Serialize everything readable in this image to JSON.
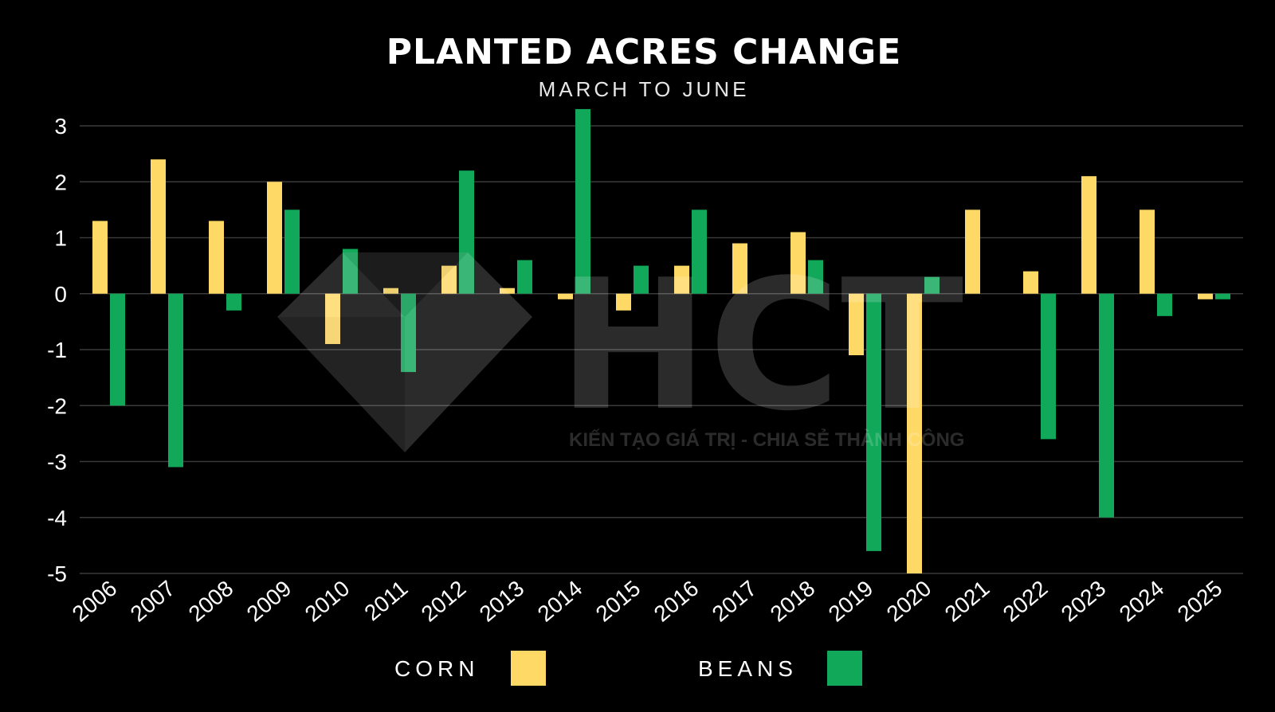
{
  "colors": {
    "background": "#000000",
    "corn": "#FFD966",
    "beans": "#12A85A",
    "grid": "#3a3a3a",
    "text": "#ffffff"
  },
  "watermark": {
    "logo_icon": "diamond-logo",
    "letters": "HCT",
    "tagline": "KIẾN TẠO GIÁ TRỊ - CHIA SẺ THÀNH CÔNG"
  },
  "chart_data": {
    "type": "bar",
    "title": "PLANTED ACRES CHANGE",
    "subtitle": "MARCH TO JUNE",
    "xlabel": "",
    "ylabel": "",
    "ylim": [
      -5,
      3
    ],
    "yticks": [
      3,
      2,
      1,
      0,
      -1,
      -2,
      -3,
      -4,
      -5
    ],
    "grid": true,
    "legend_position": "bottom-center",
    "categories": [
      "2006",
      "2007",
      "2008",
      "2009",
      "2010",
      "2011",
      "2012",
      "2013",
      "2014",
      "2015",
      "2016",
      "2017",
      "2018",
      "2019",
      "2020",
      "2021",
      "2022",
      "2023",
      "2024",
      "2025"
    ],
    "series": [
      {
        "name": "CORN",
        "color": "#FFD966",
        "values": [
          1.3,
          2.4,
          1.3,
          2.0,
          -0.9,
          0.1,
          0.5,
          0.1,
          -0.1,
          -0.3,
          0.5,
          0.9,
          1.1,
          -1.1,
          -5.0,
          1.5,
          0.4,
          2.1,
          1.5,
          -0.1
        ]
      },
      {
        "name": "BEANS",
        "color": "#12A85A",
        "values": [
          -2.0,
          -3.1,
          -0.3,
          1.5,
          0.8,
          -1.4,
          2.2,
          0.6,
          3.3,
          0.5,
          1.5,
          0.0,
          0.6,
          -4.6,
          0.3,
          0.0,
          -2.6,
          -4.0,
          -0.4,
          -0.1
        ]
      }
    ]
  }
}
